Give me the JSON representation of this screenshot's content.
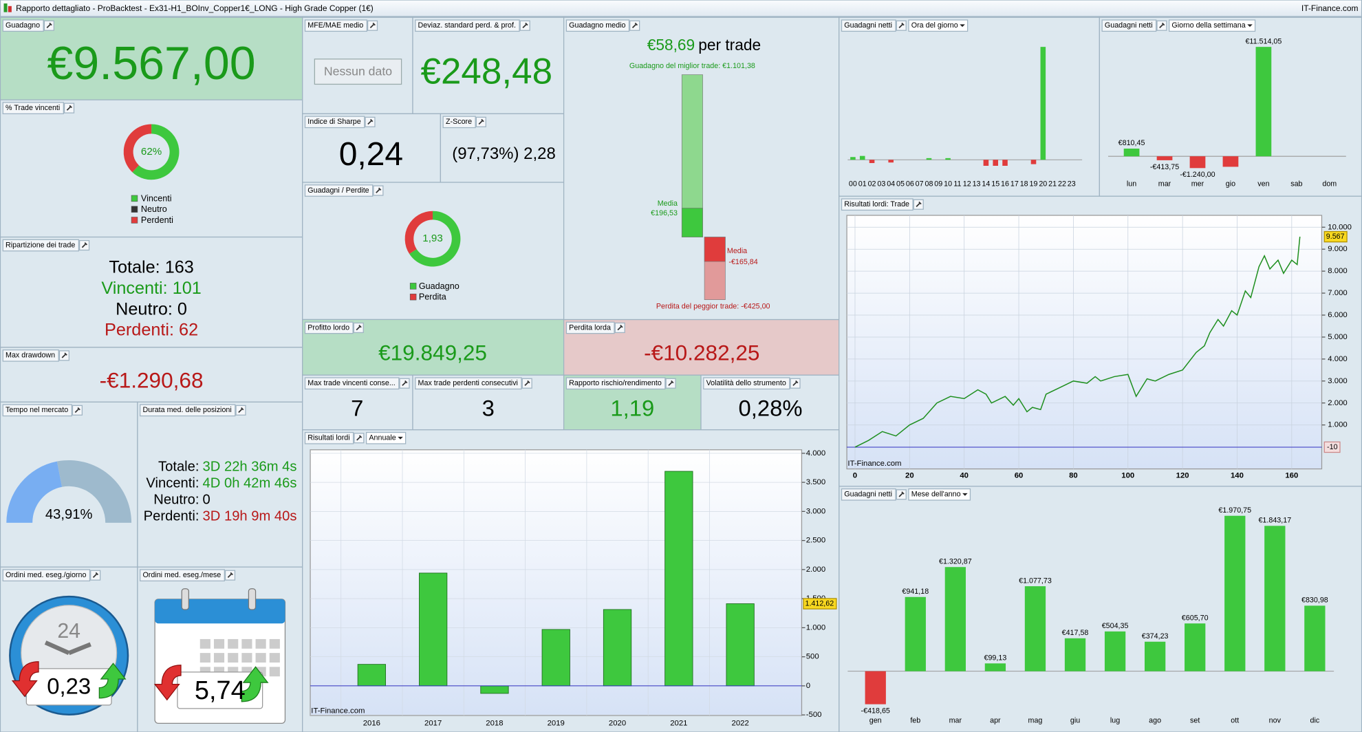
{
  "window_title": "Rapporto dettagliato - ProBacktest - Ex31-H1_BOInv_Copper1€_LONG - High Grade Copper (1€)",
  "brand": "IT-Finance.com",
  "gain": {
    "title": "Guadagno",
    "value": "€9.567,00"
  },
  "win_rate": {
    "title": "% Trade vincenti",
    "value": 62,
    "label": "62%",
    "legend": [
      "Vincenti",
      "Neutro",
      "Perdenti"
    ]
  },
  "trades": {
    "title": "Ripartizione dei trade",
    "lines": [
      "Totale: 163",
      "Vincenti: 101",
      "Neutro: 0",
      "Perdenti: 62"
    ]
  },
  "max_drawdown": {
    "title": "Max drawdown",
    "value": "-€1.290,68"
  },
  "time_in_market": {
    "title": "Tempo nel mercato",
    "value": 43.91,
    "label": "43,91%"
  },
  "avg_duration": {
    "title": "Durata med. delle posizioni",
    "rows": [
      [
        "Totale:",
        "3D 22h 36m 4s"
      ],
      [
        "Vincenti:",
        "4D 0h 42m 46s"
      ],
      [
        "Neutro:",
        "0"
      ],
      [
        "Perdenti:",
        "3D 19h 9m 40s"
      ]
    ]
  },
  "orders_day": {
    "title": "Ordini med. eseg./giorno",
    "icon_text": "24",
    "value": "0,23"
  },
  "orders_month": {
    "title": "Ordini med. eseg./mese",
    "value": "5,74"
  },
  "mfe_mae": {
    "title": "MFE/MAE medio",
    "button": "Nessun dato"
  },
  "std_dev": {
    "title": "Deviaz. standard perd. & prof.",
    "value": "€248,48"
  },
  "sharpe": {
    "title": "Indice di Sharpe",
    "value": "0,24"
  },
  "z_score": {
    "title": "Z-Score",
    "value": "(97,73%) 2,28"
  },
  "gain_loss": {
    "title": "Guadagni / Perdite",
    "value": 1.93,
    "label": "1,93",
    "legend": [
      "Guadagno",
      "Perdita"
    ]
  },
  "gross_profit": {
    "title": "Profitto lordo",
    "value": "€19.849,25"
  },
  "gross_loss": {
    "title": "Perdita lorda",
    "value": "-€10.282,25"
  },
  "max_win_streak": {
    "title": "Max trade vincenti conse...",
    "value": "7"
  },
  "max_loss_streak": {
    "title": "Max trade perdenti consecutivi",
    "value": "3"
  },
  "risk_reward": {
    "title": "Rapporto rischio/rendimento",
    "value": "1,19"
  },
  "volatility": {
    "title": "Volatilità dello strumento",
    "value": "0,28%"
  },
  "avg_gain": {
    "title": "Guadagno medio",
    "headline": "€58,69",
    "headline_suffix": "per trade",
    "best": {
      "value": 1101.38,
      "label": "Guadagno del miglior trade: €1.101,38"
    },
    "avg_win": {
      "value": 196.53,
      "caption": "Media",
      "label": "€196,53"
    },
    "avg_loss": {
      "value": -165.84,
      "caption": "Media",
      "label": "-€165,84"
    },
    "worst": {
      "value": -425,
      "label": "Perdita del peggior trade: -€425,00"
    }
  },
  "hourly": {
    "title": "Guadagni netti",
    "dropdown": "Ora del giorno",
    "chart": {
      "type": "bar",
      "categories": [
        "00",
        "01",
        "02",
        "03",
        "04",
        "05",
        "06",
        "07",
        "08",
        "09",
        "10",
        "11",
        "12",
        "13",
        "14",
        "15",
        "16",
        "17",
        "18",
        "19",
        "20",
        "21",
        "22",
        "23"
      ],
      "values": [
        250,
        350,
        -300,
        0,
        -250,
        0,
        0,
        0,
        150,
        0,
        150,
        0,
        0,
        0,
        -550,
        -550,
        -550,
        0,
        0,
        -400,
        10300,
        0,
        0,
        0
      ],
      "colors": {
        "positive": "#3ec83e",
        "negative": "#e03c3c"
      }
    }
  },
  "weekday": {
    "title": "Guadagni netti",
    "dropdown": "Giorno della settimana",
    "chart": {
      "type": "bar",
      "categories": [
        "lun",
        "mar",
        "mer",
        "gio",
        "ven",
        "sab",
        "dom"
      ],
      "values": [
        810.45,
        -413.75,
        -1240,
        -1103.75,
        11514.05,
        0,
        0
      ],
      "value_labels": [
        "€810,45",
        "-€413,75",
        "-€1.240,00",
        null,
        "€11.514,05",
        null,
        null
      ],
      "colors": {
        "positive": "#3ec83e",
        "negative": "#e03c3c"
      }
    }
  },
  "equity": {
    "title": "Risultati lordi: Trade",
    "chart": {
      "type": "line",
      "color": "#1f8f1f",
      "x": [
        0,
        5,
        10,
        15,
        20,
        25,
        30,
        35,
        40,
        45,
        48,
        50,
        55,
        58,
        60,
        63,
        65,
        68,
        70,
        75,
        80,
        85,
        88,
        90,
        95,
        100,
        103,
        107,
        110,
        115,
        120,
        125,
        128,
        130,
        133,
        135,
        138,
        140,
        143,
        145,
        148,
        150,
        152,
        155,
        157,
        160,
        162,
        163
      ],
      "values": [
        -10,
        300,
        700,
        500,
        1000,
        1300,
        2000,
        2300,
        2200,
        2600,
        2400,
        2000,
        2300,
        1900,
        2200,
        1600,
        1800,
        1700,
        2400,
        2700,
        3000,
        2900,
        3200,
        3000,
        3200,
        3300,
        2300,
        3100,
        3000,
        3300,
        3500,
        4300,
        4600,
        5200,
        5800,
        5500,
        6200,
        6000,
        7100,
        6800,
        8200,
        8700,
        8100,
        8500,
        7900,
        8500,
        8300,
        9567
      ],
      "xlim": [
        -3,
        171
      ],
      "ylim": [
        -1000,
        10540
      ],
      "xticks": [
        0,
        20,
        40,
        60,
        80,
        100,
        120,
        140,
        160
      ],
      "yticks": [
        {
          "value": 1000,
          "label": "1.000"
        },
        {
          "value": 2000,
          "label": "2.000"
        },
        {
          "value": 3000,
          "label": "3.000"
        },
        {
          "value": 4000,
          "label": "4.000"
        },
        {
          "value": 5000,
          "label": "5.000"
        },
        {
          "value": 6000,
          "label": "6.000"
        },
        {
          "value": 7000,
          "label": "7.000"
        },
        {
          "value": 8000,
          "label": "8.000"
        },
        {
          "value": 9000,
          "label": "9.000"
        },
        {
          "value": 10000,
          "label": "10.000"
        }
      ],
      "baseline": {
        "value": -10,
        "label": "-10"
      },
      "last": {
        "value": 9567,
        "label": "9.567"
      },
      "grid": true
    }
  },
  "annual": {
    "title": "Risultati lordi",
    "dropdown": "Annuale",
    "chart": {
      "type": "bar",
      "color": "#3ec83e",
      "categories": [
        "2016",
        "2017",
        "2018",
        "2019",
        "2020",
        "2021",
        "2022"
      ],
      "values": [
        370,
        1940,
        -130,
        970,
        1313,
        3690,
        1412.62
      ],
      "ylim": [
        -510,
        4060
      ],
      "yticks": [
        -500,
        0,
        500,
        {
          "value": 1000,
          "label": "1.000"
        },
        {
          "value": 1500,
          "label": "1.500"
        },
        {
          "value": 2000,
          "label": "2.000"
        },
        {
          "value": 2500,
          "label": "2.500"
        },
        {
          "value": 3000,
          "label": "3.000"
        },
        {
          "value": 3500,
          "label": "3.500"
        },
        {
          "value": 4000,
          "label": "4.000"
        }
      ],
      "last_label": "1.412,62",
      "grid": true
    }
  },
  "monthly": {
    "title": "Guadagni netti",
    "dropdown": "Mese dell'anno",
    "chart": {
      "type": "bar",
      "categories": [
        "gen",
        "feb",
        "mar",
        "apr",
        "mag",
        "giu",
        "lug",
        "ago",
        "set",
        "ott",
        "nov",
        "dic"
      ],
      "values": [
        -418.65,
        941.18,
        1320.87,
        99.13,
        1077.73,
        417.58,
        504.35,
        374.23,
        605.7,
        1970.75,
        1843.17,
        830.98
      ],
      "value_labels": [
        "-€418,65",
        "€941,18",
        "€1.320,87",
        "€99,13",
        "€1.077,73",
        "€417,58",
        "€504,35",
        "€374,23",
        "€605,70",
        "€1.970,75",
        "€1.843,17",
        "€830,98"
      ],
      "colors": {
        "positive": "#3ec83e",
        "negative": "#e03c3c"
      }
    }
  }
}
